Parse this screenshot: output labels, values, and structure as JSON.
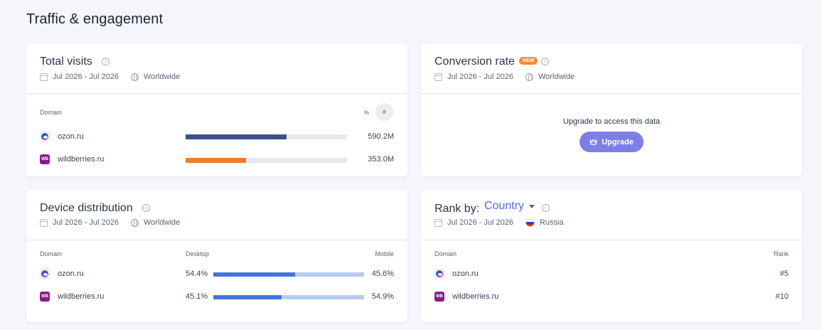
{
  "page": {
    "title": "Traffic & engagement"
  },
  "total_visits": {
    "title": "Total visits",
    "date_range": "Jul 2026 - Jul 2026",
    "region": "Worldwide",
    "col_domain": "Domain",
    "toggle_percent": "%",
    "toggle_number": "#",
    "rows": [
      {
        "domain": "ozon.ru",
        "value": "590.2M",
        "share": 0.626,
        "color": "#3d5289"
      },
      {
        "domain": "wildberries.ru",
        "value": "353.0M",
        "share": 0.374,
        "color": "#f07c2a"
      }
    ]
  },
  "conversion_rate": {
    "title": "Conversion rate",
    "badge": "NEW",
    "date_range": "Jul 2026 - Jul 2026",
    "region": "Worldwide",
    "upgrade_message": "Upgrade to access this data",
    "upgrade_label": "Upgrade"
  },
  "device_distribution": {
    "title": "Device distribution",
    "date_range": "Jul 2026 - Jul 2026",
    "region": "Worldwide",
    "col_domain": "Domain",
    "col_desktop": "Desktop",
    "col_mobile": "Mobile",
    "rows": [
      {
        "domain": "ozon.ru",
        "desktop": "54.4%",
        "mobile": "45.6%",
        "desktop_share": 0.544
      },
      {
        "domain": "wildberries.ru",
        "desktop": "45.1%",
        "mobile": "54.9%",
        "desktop_share": 0.451
      }
    ]
  },
  "rank": {
    "label": "Rank by:",
    "selected": "Country",
    "date_range": "Jul 2026 - Jul 2026",
    "region": "Russia",
    "col_domain": "Domain",
    "col_rank": "Rank",
    "rows": [
      {
        "domain": "ozon.ru",
        "rank": "#5"
      },
      {
        "domain": "wildberries.ru",
        "rank": "#10"
      }
    ]
  },
  "colors": {
    "accent": "#4a6ee8",
    "upgrade_button": "#7d7fe8",
    "new_badge": "#f28a3a",
    "desktop_bar": "#4574dd",
    "mobile_bar": "#b6ccef"
  }
}
